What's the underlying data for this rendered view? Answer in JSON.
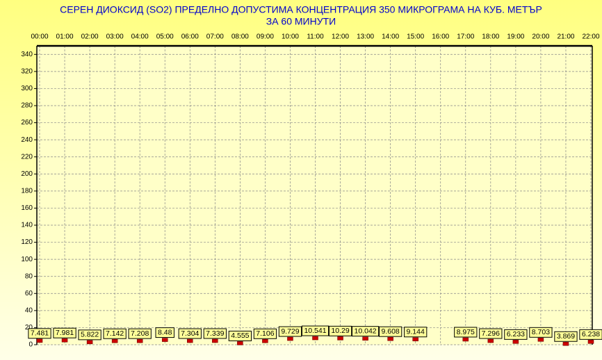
{
  "chart_data": {
    "type": "bar-markers",
    "title": "СЕРЕН ДИОКСИД  (SO2)  ПРЕДЕЛНО ДОПУСТИМА КОНЦЕНТРАЦИЯ 350 МИКРОГРАМА  НА КУБ. МЕТЪР",
    "subtitle": "ЗА 60 МИНУТИ",
    "categories": [
      "00:00",
      "01:00",
      "02:00",
      "03:00",
      "04:00",
      "05:00",
      "06:00",
      "07:00",
      "08:00",
      "09:00",
      "10:00",
      "11:00",
      "12:00",
      "13:00",
      "14:00",
      "15:00",
      "16:00",
      "17:00",
      "18:00",
      "19:00",
      "20:00",
      "21:00",
      "22:00"
    ],
    "values": [
      7.481,
      7.981,
      5.822,
      7.142,
      7.208,
      8.48,
      7.304,
      7.339,
      4.555,
      7.106,
      9.729,
      10.541,
      10.29,
      10.042,
      9.608,
      9.144,
      null,
      8.975,
      7.296,
      6.233,
      8.703,
      3.869,
      6.238
    ],
    "color": "#cc0000",
    "ylim": [
      0,
      350
    ],
    "yticks": [
      0,
      20,
      40,
      60,
      80,
      100,
      120,
      140,
      160,
      180,
      200,
      220,
      240,
      260,
      280,
      300,
      320,
      340
    ],
    "grid": true
  }
}
